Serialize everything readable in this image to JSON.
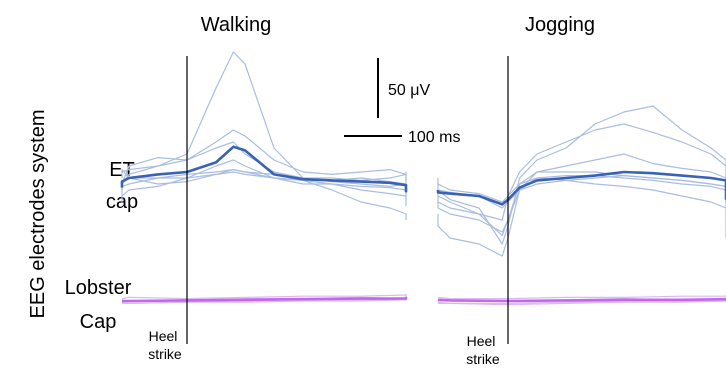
{
  "figure": {
    "panel_titles": [
      "Walking",
      "Jogging"
    ],
    "y_axis_label": "EEG electrodes system",
    "row_labels": [
      {
        "line1": "ET",
        "line2": "cap"
      },
      {
        "line1": "Lobster",
        "line2": "Cap"
      }
    ],
    "event_label": {
      "line1": "Heel",
      "line2": "strike"
    },
    "scale_bars": {
      "amplitude": "50 μV",
      "time": "100 ms"
    },
    "colors": {
      "et_mean": "#3a62b4",
      "et_trials": "#aabde0",
      "lobster_mean": "#c169ee",
      "lobster_trials": "#ddb8f3",
      "marker": "#000000"
    }
  },
  "chart_data": {
    "type": "line",
    "x_unit": "ms",
    "y_unit": "μV",
    "scale_bars": {
      "x_ms": 100,
      "y_uV": 50
    },
    "event_marker": {
      "name": "Heel strike",
      "x_ms": 0
    },
    "panels": [
      {
        "condition": "Walking",
        "x_range_ms": [
          -200,
          660
        ],
        "rows": [
          {
            "system": "ET cap",
            "x_ms": [
              -200,
              -150,
              -100,
              -50,
              0,
              50,
              80,
              100,
              150,
              200,
              250,
              300,
              350,
              400,
              450,
              500,
              550,
              600,
              660
            ],
            "mean": [
              -3,
              2,
              5,
              8,
              10,
              18,
              31,
              28,
              8,
              4,
              3,
              2,
              1,
              -1,
              -3,
              -5,
              -6,
              -5,
              -6
            ],
            "trials": [
              [
                -5,
                0,
                8,
                15,
                25,
                80,
                110,
                100,
                30,
                5,
                2,
                0,
                -2,
                0,
                -2,
                -3,
                -5,
                0,
                -5
              ],
              [
                5,
                10,
                12,
                15,
                20,
                35,
                45,
                40,
                20,
                10,
                8,
                10,
                12,
                8,
                5,
                3,
                2,
                5,
                3
              ],
              [
                -10,
                0,
                15,
                22,
                20,
                30,
                35,
                25,
                10,
                5,
                3,
                5,
                2,
                0,
                -2,
                -3,
                -2,
                -5,
                -3
              ],
              [
                0,
                3,
                5,
                5,
                8,
                10,
                12,
                10,
                8,
                5,
                5,
                3,
                5,
                8,
                10,
                5,
                3,
                0,
                2
              ],
              [
                -2,
                -2,
                0,
                5,
                5,
                8,
                10,
                8,
                5,
                3,
                -5,
                -15,
                -20,
                -25,
                -25,
                -28,
                -28,
                -25,
                -30
              ],
              [
                -15,
                -10,
                -5,
                -2,
                5,
                15,
                20,
                15,
                5,
                0,
                0,
                -5,
                -8,
                -10,
                -12,
                -15,
                -15,
                -18,
                -15
              ],
              [
                10,
                12,
                5,
                0,
                2,
                8,
                12,
                10,
                5,
                3,
                0,
                -2,
                -3,
                -5,
                -8,
                -10,
                -12,
                -10,
                -12
              ]
            ]
          },
          {
            "system": "Lobster Cap",
            "x_ms": [
              -200,
              -100,
              0,
              100,
              200,
              300,
              400,
              500,
              600,
              660
            ],
            "mean": [
              0,
              0,
              0.5,
              1,
              1.5,
              2,
              2,
              2.5,
              3,
              3.5
            ],
            "trials": [
              [
                2,
                3,
                2,
                3,
                4,
                4,
                5,
                4,
                5,
                6
              ],
              [
                -2,
                -2,
                -1,
                -1,
                0,
                0,
                1,
                1,
                1,
                2
              ],
              [
                1,
                0,
                1,
                2,
                2,
                3,
                2,
                3,
                4,
                4
              ],
              [
                -1,
                -2,
                -1,
                0,
                1,
                1,
                1,
                2,
                2,
                3
              ]
            ]
          }
        ]
      },
      {
        "condition": "Jogging",
        "x_range_ms": [
          -200,
          660
        ],
        "rows": [
          {
            "system": "ET cap",
            "x_ms": [
              -200,
              -150,
              -100,
              -50,
              -10,
              0,
              20,
              50,
              100,
              150,
              200,
              250,
              300,
              350,
              400,
              450,
              500,
              550,
              600,
              660
            ],
            "mean": [
              0,
              -2,
              -3,
              -5,
              -12,
              -8,
              2,
              8,
              10,
              12,
              15,
              14,
              12,
              10,
              8,
              5,
              2,
              -2,
              -5,
              -8
            ],
            "trials": [
              [
                5,
                0,
                -8,
                -15,
                -45,
                -30,
                10,
                25,
                35,
                55,
                65,
                70,
                50,
                35,
                25,
                15,
                10,
                5,
                0,
                -5
              ],
              [
                -5,
                -10,
                -15,
                -20,
                -25,
                -5,
                15,
                30,
                40,
                50,
                55,
                48,
                40,
                30,
                20,
                10,
                5,
                0,
                -5,
                -10
              ],
              [
                0,
                -5,
                -10,
                -20,
                -38,
                -25,
                5,
                15,
                20,
                25,
                30,
                22,
                18,
                15,
                10,
                5,
                0,
                -3,
                -5,
                -8
              ],
              [
                -20,
                -30,
                -40,
                -45,
                -55,
                -40,
                0,
                15,
                15,
                15,
                12,
                10,
                8,
                5,
                3,
                0,
                -5,
                -10,
                -15,
                -20
              ],
              [
                10,
                5,
                0,
                -3,
                -10,
                -5,
                5,
                10,
                8,
                5,
                3,
                0,
                -5,
                -10,
                -15,
                -20,
                -25,
                -30,
                -35,
                -40
              ],
              [
                0,
                0,
                -2,
                -5,
                -15,
                -10,
                0,
                5,
                8,
                10,
                12,
                10,
                8,
                5,
                3,
                0,
                -3,
                -5,
                -8,
                -10
              ],
              [
                -10,
                -15,
                -20,
                -25,
                -35,
                -25,
                0,
                10,
                12,
                12,
                10,
                8,
                5,
                3,
                0,
                -2,
                -5,
                -8,
                -10,
                -12
              ]
            ]
          },
          {
            "system": "Lobster Cap",
            "x_ms": [
              -200,
              -100,
              0,
              100,
              200,
              300,
              400,
              500,
              600,
              660
            ],
            "mean": [
              1,
              0.5,
              0,
              0.5,
              1,
              1,
              1.5,
              1.5,
              2,
              2
            ],
            "trials": [
              [
                3,
                2,
                2,
                3,
                3,
                4,
                4,
                4,
                5,
                5
              ],
              [
                -2,
                -2,
                -3,
                -2,
                -1,
                -1,
                0,
                0,
                0,
                1
              ],
              [
                0,
                1,
                0,
                1,
                2,
                1,
                2,
                2,
                3,
                3
              ],
              [
                -1,
                -2,
                -2,
                -1,
                0,
                0,
                0,
                1,
                1,
                1
              ]
            ]
          }
        ]
      }
    ]
  }
}
